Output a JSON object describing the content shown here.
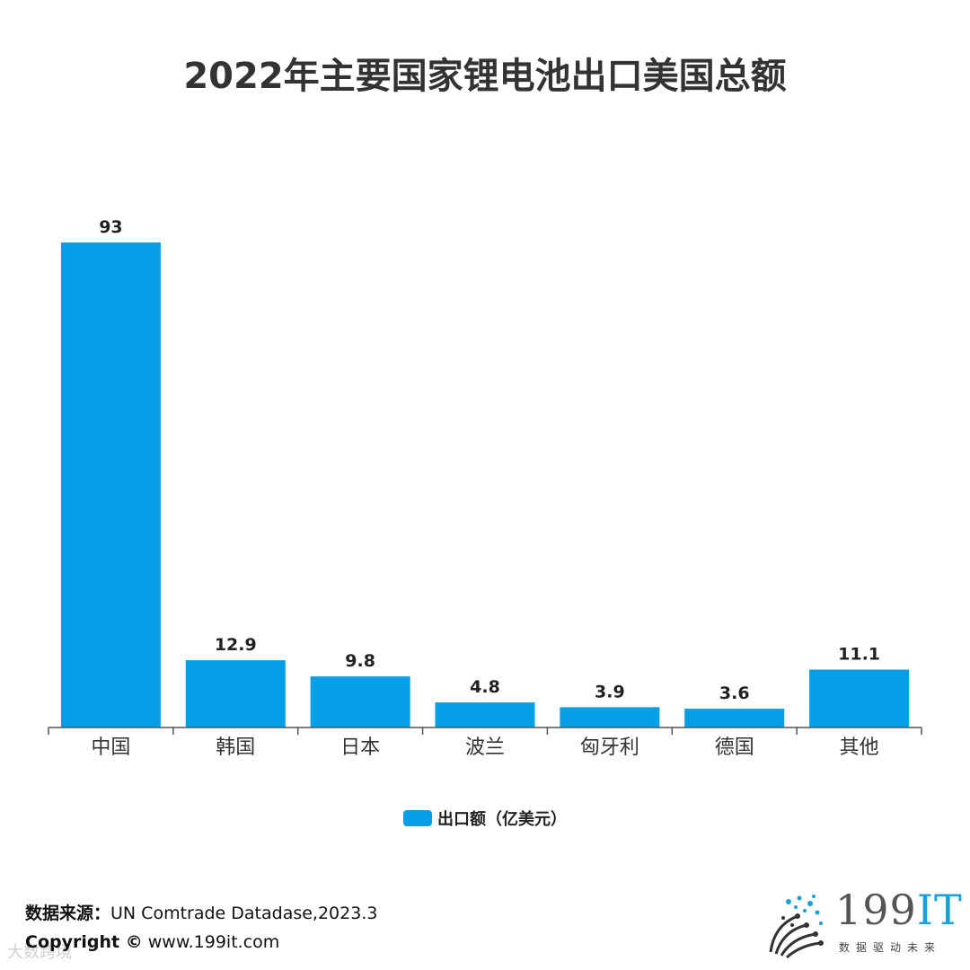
{
  "chart_data": {
    "type": "bar",
    "title": "2022年主要国家锂电池出口美国总额",
    "categories": [
      "中国",
      "韩国",
      "日本",
      "波兰",
      "匈牙利",
      "德国",
      "其他"
    ],
    "values": [
      93,
      12.9,
      9.8,
      4.8,
      3.9,
      3.6,
      11.1
    ],
    "value_labels": [
      "93",
      "12.9",
      "9.8",
      "4.8",
      "3.9",
      "3.6",
      "11.1"
    ],
    "series": [
      {
        "name": "出口额（亿美元）",
        "values": [
          93,
          12.9,
          9.8,
          4.8,
          3.9,
          3.6,
          11.1
        ]
      }
    ],
    "xlabel": "",
    "ylabel": "",
    "ylim": [
      0,
      93
    ],
    "legend": "bottom-center",
    "grid": false,
    "bar_color": "#059fe8"
  },
  "legend": {
    "label": "出口额（亿美元）"
  },
  "footer": {
    "source_label": "数据来源：",
    "source_value": "UN Comtrade Datadase,2023.3",
    "copyright_label": "Copyright ©",
    "copyright_value": "www.199it.com"
  },
  "watermark": "大数跨境",
  "logo": {
    "text_main": "199",
    "text_accent": "IT",
    "tagline": "数据驱动未来"
  }
}
